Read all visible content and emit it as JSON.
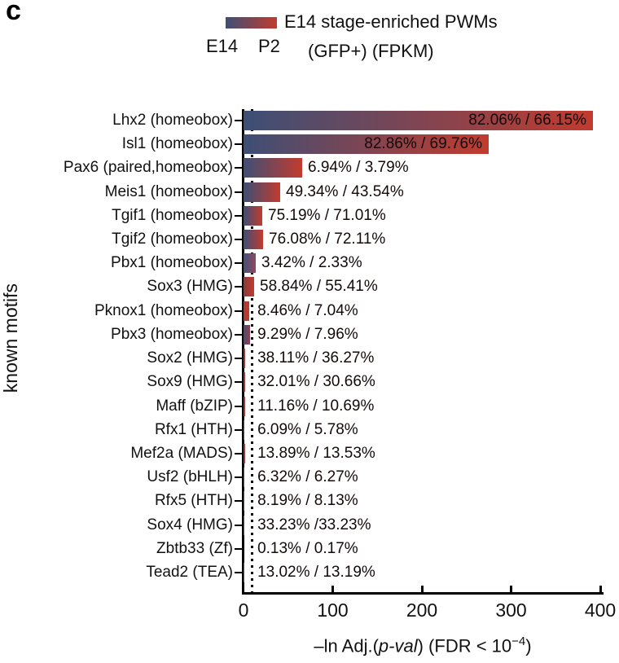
{
  "panel_label": "c",
  "legend": {
    "title": "E14 stage-enriched PWMs",
    "left_label": "E14",
    "right_label": "P2",
    "sub_label": "(GFP+) (FPKM)",
    "gradient_start": "#3d4f76",
    "gradient_end": "#c23b2e"
  },
  "colors": {
    "bar_blue": "#3d4f76",
    "bar_red": "#c23b2e",
    "axis": "#000000",
    "text": "#111111"
  },
  "chart_data": {
    "type": "bar",
    "orientation": "horizontal",
    "title": "E14 stage-enriched PWMs",
    "ylabel": "known motifs",
    "xlabel": "–ln Adj.(p-val) (FDR < 10⁻⁴)",
    "xlabel_parts": {
      "prefix": "–ln Adj.(",
      "italic": "p-val",
      "mid": ") (FDR < 10",
      "sup": "−4",
      "suffix": ")"
    },
    "xlim": [
      0,
      400
    ],
    "x_ticks": [
      "0",
      "100",
      "200",
      "300",
      "400"
    ],
    "x_tick_values": [
      0,
      100,
      200,
      300,
      400
    ],
    "threshold_x": 9.21,
    "threshold_style": "dotted",
    "grid": false,
    "legend_position": "top",
    "rows": [
      {
        "motif": "Lhx2 (homeobox)",
        "value": 392,
        "label": "82.06% / 66.15%",
        "label_inside": true,
        "color_start": "#3d4f76",
        "color_end": "#c23b2e"
      },
      {
        "motif": "Isl1 (homeobox)",
        "value": 275,
        "label": "82.86% / 69.76%",
        "label_inside": true,
        "color_start": "#3d4f76",
        "color_end": "#c23b2e"
      },
      {
        "motif": "Pax6 (paired,homeobox)",
        "value": 66,
        "label": "6.94% / 3.79%",
        "label_inside": false,
        "color_start": "#3d4f76",
        "color_end": "#c23b2e"
      },
      {
        "motif": "Meis1 (homeobox)",
        "value": 41,
        "label": "49.34% / 43.54%",
        "label_inside": false,
        "color_start": "#3d4f76",
        "color_end": "#c23b2e"
      },
      {
        "motif": "Tgif1 (homeobox)",
        "value": 21,
        "label": "75.19% / 71.01%",
        "label_inside": false,
        "color_start": "#3d4f76",
        "color_end": "#c23b2e"
      },
      {
        "motif": "Tgif2 (homeobox)",
        "value": 22,
        "label": "76.08% / 72.11%",
        "label_inside": false,
        "color_start": "#3d4f76",
        "color_end": "#c23b2e"
      },
      {
        "motif": "Pbx1 (homeobox)",
        "value": 14,
        "label": "3.42% / 2.33%",
        "label_inside": false,
        "color_start": "#44517a",
        "color_end": "#8f4a5e"
      },
      {
        "motif": "Sox3 (HMG)",
        "value": 12,
        "label": "58.84% / 55.41%",
        "label_inside": false,
        "color_start": "#8a3a3c",
        "color_end": "#c23b2e"
      },
      {
        "motif": "Pknox1 (homeobox)",
        "value": 6,
        "label": "8.46% / 7.04%",
        "label_inside": false,
        "color_start": "#aa3a31",
        "color_end": "#c23b2e"
      },
      {
        "motif": "Pbx3 (homeobox)",
        "value": 7,
        "label": "9.29% / 7.96%",
        "label_inside": false,
        "color_start": "#4d4a72",
        "color_end": "#8e4050"
      },
      {
        "motif": "Sox2 (HMG)",
        "value": 2,
        "label": "38.11% / 36.27%",
        "label_inside": false,
        "color_start": "#3d4f76",
        "color_end": "#c23b2e"
      },
      {
        "motif": "Sox9 (HMG)",
        "value": 2,
        "label": "32.01% / 30.66%",
        "label_inside": false,
        "color_start": "#3d4f76",
        "color_end": "#c23b2e"
      },
      {
        "motif": "Maff (bZIP)",
        "value": 1.5,
        "label": "11.16% / 10.69%",
        "label_inside": false,
        "color_start": "#3d4f76",
        "color_end": "#c23b2e"
      },
      {
        "motif": "Rfx1 (HTH)",
        "value": 1,
        "label": "6.09% / 5.78%",
        "label_inside": false,
        "color_start": "#3d4f76",
        "color_end": "#c23b2e"
      },
      {
        "motif": "Mef2a (MADS)",
        "value": 1.5,
        "label": "13.89% / 13.53%",
        "label_inside": false,
        "color_start": "#3d4f76",
        "color_end": "#c23b2e"
      },
      {
        "motif": "Usf2 (bHLH)",
        "value": 1,
        "label": "6.32% / 6.27%",
        "label_inside": false,
        "color_start": "#3d4f76",
        "color_end": "#c23b2e"
      },
      {
        "motif": "Rfx5 (HTH)",
        "value": 1,
        "label": "8.19% / 8.13%",
        "label_inside": false,
        "color_start": "#3d4f76",
        "color_end": "#c23b2e"
      },
      {
        "motif": "Sox4 (HMG)",
        "value": 1,
        "label": "33.23% /33.23%",
        "label_inside": false,
        "color_start": "#3d4f76",
        "color_end": "#c23b2e"
      },
      {
        "motif": "Zbtb33 (Zf)",
        "value": 0.3,
        "label": "0.13% / 0.17%",
        "label_inside": false,
        "color_start": "#3d4f76",
        "color_end": "#c23b2e"
      },
      {
        "motif": "Tead2 (TEA)",
        "value": 1,
        "label": "13.02% / 13.19%",
        "label_inside": false,
        "color_start": "#3d4f76",
        "color_end": "#c23b2e"
      }
    ]
  }
}
